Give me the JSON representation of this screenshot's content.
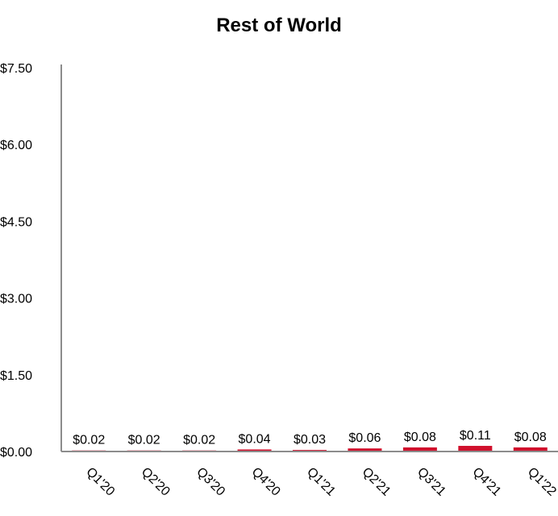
{
  "chart_data": {
    "type": "bar",
    "title": "Rest of World",
    "xlabel": "",
    "ylabel": "",
    "categories": [
      "Q1'20",
      "Q2'20",
      "Q3'20",
      "Q4'20",
      "Q1'21",
      "Q2'21",
      "Q3'21",
      "Q4'21",
      "Q1'22"
    ],
    "values": [
      0.02,
      0.02,
      0.02,
      0.04,
      0.03,
      0.06,
      0.08,
      0.11,
      0.08
    ],
    "data_labels": [
      "$0.02",
      "$0.02",
      "$0.02",
      "$0.04",
      "$0.03",
      "$0.06",
      "$0.08",
      "$0.11",
      "$0.08"
    ],
    "ylim": [
      0,
      7.5
    ],
    "yticks": [
      0,
      1.5,
      3.0,
      4.5,
      6.0,
      7.5
    ],
    "ytick_labels": [
      "$0.00",
      "$1.50",
      "$3.00",
      "$4.50",
      "$6.00",
      "$7.50"
    ],
    "grid": false,
    "legend": "none",
    "colors": {
      "bar": "#d0102c",
      "axis": "#8c8c8c",
      "text": "#000000"
    }
  }
}
